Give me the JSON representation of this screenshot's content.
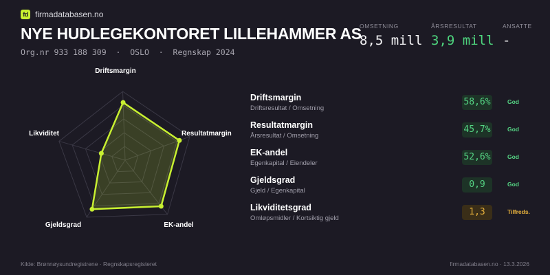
{
  "brand": {
    "logo_text": "fd",
    "name": "firmadatabasen.no"
  },
  "company": {
    "name": "NYE HUDLEGEKONTORET LILLEHAMMER AS",
    "subline": "Org.nr 933 188 309  ·  OSLO  ·  Regnskap 2024"
  },
  "kpis": [
    {
      "label": "OMSETNING",
      "value": "8,5 mill"
    },
    {
      "label": "ÅRSRESULTAT",
      "value": "3,9 mill"
    },
    {
      "label": "ANSATTE",
      "value": "-"
    }
  ],
  "radar": {
    "axes": [
      "Driftsmargin",
      "Resultatmargin",
      "EK-andel",
      "Gjeldsgrad",
      "Likviditet"
    ],
    "scores": [
      0.84,
      0.84,
      0.85,
      0.86,
      0.36
    ],
    "colors": {
      "accent": "#c8f031",
      "grid": "#3a3845"
    }
  },
  "metrics": [
    {
      "name": "Driftsmargin",
      "desc": "Driftsresultat / Omsetning",
      "value": "58,6%",
      "status": "God",
      "level": "good"
    },
    {
      "name": "Resultatmargin",
      "desc": "Årsresultat / Omsetning",
      "value": "45,7%",
      "status": "God",
      "level": "good"
    },
    {
      "name": "EK-andel",
      "desc": "Egenkapital / Eiendeler",
      "value": "52,6%",
      "status": "God",
      "level": "good"
    },
    {
      "name": "Gjeldsgrad",
      "desc": "Gjeld / Egenkapital",
      "value": "0,9",
      "status": "God",
      "level": "good"
    },
    {
      "name": "Likviditetsgrad",
      "desc": "Omløpsmidler / Kortsiktig gjeld",
      "value": "1,3",
      "status": "Tilfreds.",
      "level": "ok"
    }
  ],
  "footer": {
    "source": "Kilde: Brønnøysundregistrene · Regnskapsregisteret",
    "site_date": "firmadatabasen.no · 13.3.2026"
  }
}
